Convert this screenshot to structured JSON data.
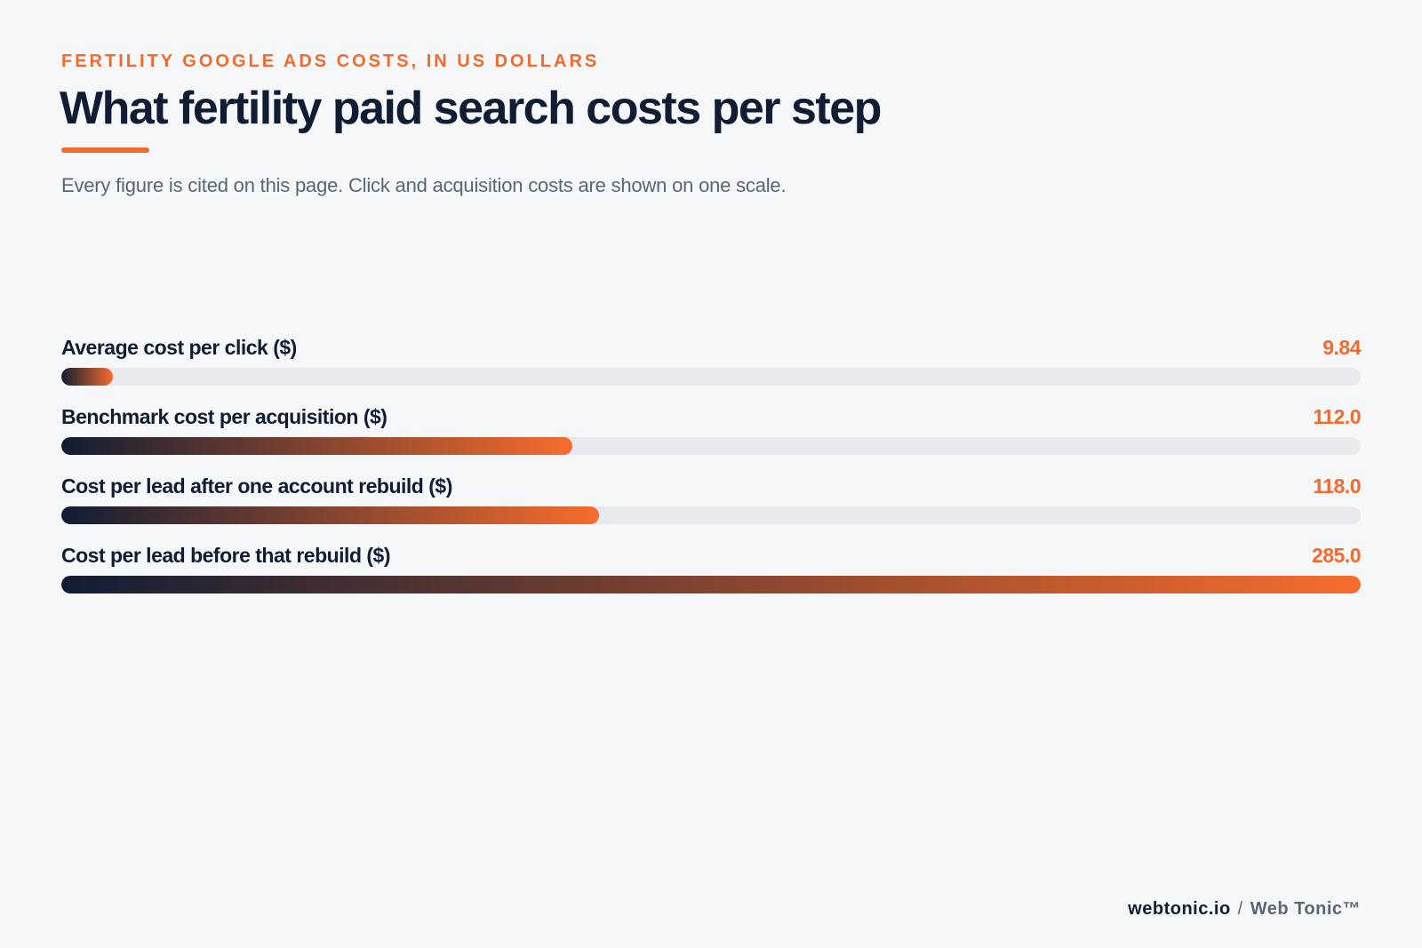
{
  "header": {
    "eyebrow": "FERTILITY GOOGLE ADS COSTS, IN US DOLLARS",
    "title": "What fertility paid search costs per step",
    "subtitle": "Every figure is cited on this page. Click and acquisition costs are shown on one scale."
  },
  "chart_data": {
    "type": "bar",
    "orientation": "horizontal",
    "categories": [
      "Average cost per click ($)",
      "Benchmark cost per acquisition ($)",
      "Cost per lead after one account rebuild ($)",
      "Cost per lead before that rebuild ($)"
    ],
    "values": [
      9.84,
      112.0,
      118.0,
      285.0
    ],
    "value_labels": [
      "9.84",
      "112.0",
      "118.0",
      "285.0"
    ],
    "xlim": [
      0,
      285.0
    ],
    "grid": false,
    "legend": "none",
    "colors": {
      "gradient_start": "#111d33",
      "gradient_end": "#f76c2d",
      "track": "#e8eaee",
      "value_text": "#f26a2e"
    }
  },
  "footer": {
    "site": "webtonic.io",
    "separator": "/",
    "brand": "Web Tonic™"
  }
}
